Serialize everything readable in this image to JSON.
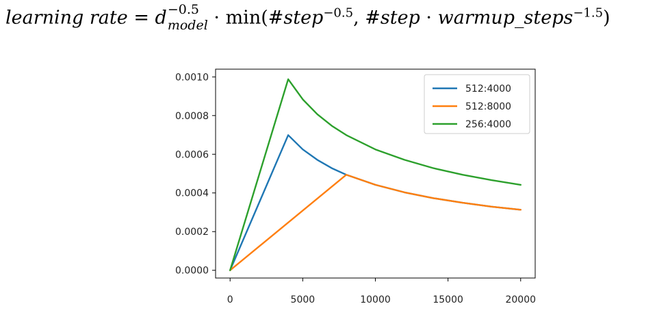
{
  "formula": {
    "lhs": "learning rate",
    "equals": "=",
    "d": "d",
    "d_sup": "−0.5",
    "d_sub": "model",
    "dot": "·",
    "min_open": "min(",
    "step1": "#step",
    "step1_sup": "−0.5",
    "comma": ", ",
    "step2": "#step",
    "warmup": "warmup_steps",
    "warmup_sup": "−1.5",
    "close": ")"
  },
  "chart_data": {
    "type": "line",
    "xlim": [
      -1000,
      21000
    ],
    "ylim": [
      -4e-05,
      0.00104
    ],
    "grid": false,
    "legend_position": "top-right",
    "x_ticks": [
      0,
      5000,
      10000,
      15000,
      20000
    ],
    "x_tick_labels": [
      "0",
      "5000",
      "10000",
      "15000",
      "20000"
    ],
    "y_ticks": [
      0.0,
      0.0002,
      0.0004,
      0.0006,
      0.0008,
      0.001
    ],
    "y_tick_labels": [
      "0.0000",
      "0.0002",
      "0.0004",
      "0.0006",
      "0.0008",
      "0.0010"
    ],
    "series": [
      {
        "name": "512:4000",
        "color": "#1f77b4",
        "x": [
          0,
          4000,
          5000,
          6000,
          7000,
          8000,
          10000,
          12000,
          14000,
          16000,
          18000,
          20000
        ],
        "y": [
          0.0,
          0.000699,
          0.000625,
          0.000571,
          0.000528,
          0.000494,
          0.000442,
          0.000403,
          0.000373,
          0.000349,
          0.000329,
          0.000313
        ]
      },
      {
        "name": "512:8000",
        "color": "#ff7f0e",
        "x": [
          0,
          8000,
          10000,
          12000,
          14000,
          16000,
          18000,
          20000
        ],
        "y": [
          0.0,
          0.000494,
          0.000442,
          0.000403,
          0.000373,
          0.000349,
          0.000329,
          0.000313
        ]
      },
      {
        "name": "256:4000",
        "color": "#2ca02c",
        "x": [
          0,
          4000,
          5000,
          6000,
          7000,
          8000,
          10000,
          12000,
          14000,
          16000,
          18000,
          20000
        ],
        "y": [
          0.0,
          0.000988,
          0.000884,
          0.000807,
          0.000747,
          0.000699,
          0.000625,
          0.000571,
          0.000528,
          0.000494,
          0.000466,
          0.000442
        ]
      }
    ]
  }
}
